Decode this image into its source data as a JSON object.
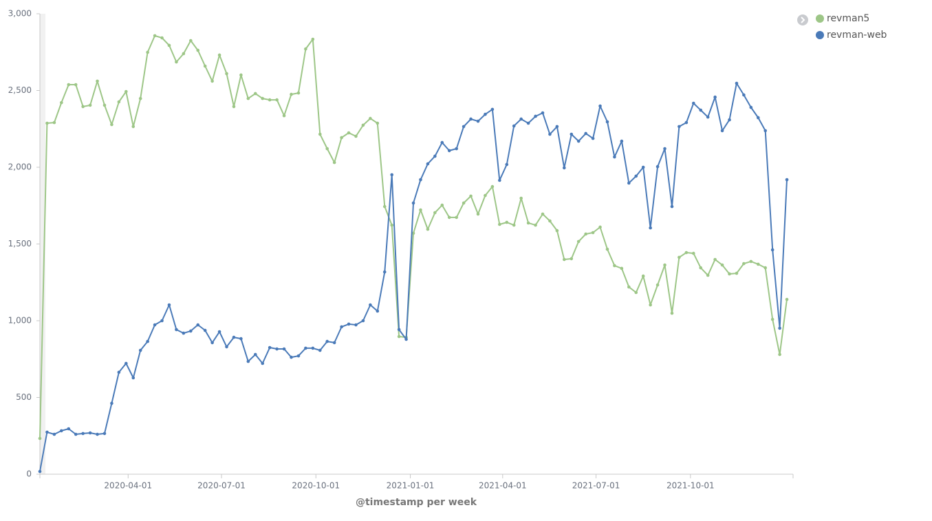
{
  "chart_data": {
    "type": "line",
    "x_label": "@timestamp per week",
    "x": [
      "2020-01-06",
      "2020-01-13",
      "2020-01-20",
      "2020-01-27",
      "2020-02-03",
      "2020-02-10",
      "2020-02-17",
      "2020-02-24",
      "2020-03-02",
      "2020-03-09",
      "2020-03-16",
      "2020-03-23",
      "2020-03-30",
      "2020-04-06",
      "2020-04-13",
      "2020-04-20",
      "2020-04-27",
      "2020-05-04",
      "2020-05-11",
      "2020-05-18",
      "2020-05-25",
      "2020-06-01",
      "2020-06-08",
      "2020-06-15",
      "2020-06-22",
      "2020-06-29",
      "2020-07-06",
      "2020-07-13",
      "2020-07-20",
      "2020-07-27",
      "2020-08-03",
      "2020-08-10",
      "2020-08-17",
      "2020-08-24",
      "2020-08-31",
      "2020-09-07",
      "2020-09-14",
      "2020-09-21",
      "2020-09-28",
      "2020-10-05",
      "2020-10-12",
      "2020-10-19",
      "2020-10-26",
      "2020-11-02",
      "2020-11-09",
      "2020-11-16",
      "2020-11-23",
      "2020-11-30",
      "2020-12-07",
      "2020-12-14",
      "2020-12-21",
      "2020-12-28",
      "2021-01-04",
      "2021-01-11",
      "2021-01-18",
      "2021-01-25",
      "2021-02-01",
      "2021-02-08",
      "2021-02-15",
      "2021-02-22",
      "2021-03-01",
      "2021-03-08",
      "2021-03-15",
      "2021-03-22",
      "2021-03-29",
      "2021-04-05",
      "2021-04-12",
      "2021-04-19",
      "2021-04-26",
      "2021-05-03",
      "2021-05-10",
      "2021-05-17",
      "2021-05-24",
      "2021-05-31",
      "2021-06-07",
      "2021-06-14",
      "2021-06-21",
      "2021-06-28",
      "2021-07-05",
      "2021-07-12",
      "2021-07-19",
      "2021-07-26",
      "2021-08-02",
      "2021-08-09",
      "2021-08-16",
      "2021-08-23",
      "2021-08-30",
      "2021-09-06",
      "2021-09-13",
      "2021-09-20",
      "2021-09-27",
      "2021-10-04",
      "2021-10-11",
      "2021-10-18",
      "2021-10-25",
      "2021-11-01",
      "2021-11-08",
      "2021-11-15",
      "2021-11-22",
      "2021-11-29",
      "2021-12-06",
      "2021-12-13",
      "2021-12-20",
      "2021-12-27",
      "2022-01-03"
    ],
    "series": [
      {
        "name": "revman5",
        "color": "#9dc687",
        "values": [
          233,
          2287,
          2291,
          2421,
          2538,
          2538,
          2395,
          2404,
          2561,
          2404,
          2278,
          2426,
          2493,
          2265,
          2448,
          2749,
          2857,
          2843,
          2794,
          2686,
          2740,
          2825,
          2762,
          2659,
          2561,
          2731,
          2610,
          2395,
          2601,
          2448,
          2480,
          2448,
          2439,
          2439,
          2336,
          2475,
          2484,
          2771,
          2834,
          2215,
          2121,
          2031,
          2193,
          2224,
          2202,
          2274,
          2318,
          2287,
          1744,
          1623,
          897,
          892,
          1570,
          1722,
          1596,
          1704,
          1753,
          1673,
          1673,
          1767,
          1812,
          1695,
          1816,
          1874,
          1628,
          1641,
          1623,
          1798,
          1637,
          1623,
          1695,
          1650,
          1587,
          1399,
          1404,
          1516,
          1565,
          1574,
          1610,
          1466,
          1359,
          1341,
          1220,
          1184,
          1291,
          1103,
          1233,
          1363,
          1049,
          1413,
          1444,
          1439,
          1345,
          1296,
          1399,
          1363,
          1305,
          1309,
          1372,
          1386,
          1368,
          1345,
          1009,
          780,
          1139
        ]
      },
      {
        "name": "revman-web",
        "color": "#4a7ab8",
        "values": [
          18,
          274,
          260,
          283,
          296,
          260,
          265,
          269,
          260,
          265,
          462,
          664,
          722,
          628,
          807,
          865,
          973,
          1000,
          1103,
          942,
          919,
          933,
          973,
          937,
          857,
          928,
          830,
          892,
          883,
          735,
          780,
          722,
          825,
          816,
          816,
          762,
          771,
          821,
          821,
          807,
          865,
          857,
          960,
          978,
          973,
          1000,
          1103,
          1063,
          1318,
          1951,
          942,
          879,
          1767,
          1919,
          2022,
          2072,
          2161,
          2108,
          2121,
          2265,
          2314,
          2300,
          2345,
          2377,
          1915,
          2018,
          2269,
          2314,
          2287,
          2332,
          2354,
          2215,
          2265,
          1996,
          2215,
          2170,
          2220,
          2188,
          2399,
          2296,
          2067,
          2170,
          1897,
          1942,
          2000,
          1605,
          2004,
          2121,
          1744,
          2265,
          2291,
          2417,
          2372,
          2327,
          2457,
          2238,
          2309,
          2547,
          2471,
          2390,
          2323,
          2238,
          1462,
          951,
          1919
        ]
      }
    ],
    "xlim": [
      "2020-01-06",
      "2022-01-09"
    ],
    "xticks": [
      "2020-04-01",
      "2020-07-01",
      "2020-10-01",
      "2021-01-01",
      "2021-04-01",
      "2021-07-01",
      "2021-10-01"
    ],
    "ylim": [
      0,
      3000
    ],
    "yticks": [
      0,
      500,
      {
        "value": 1000,
        "label": "1,000"
      },
      {
        "value": 1500,
        "label": "1,500"
      },
      {
        "value": 2000,
        "label": "2,000"
      },
      {
        "value": 2500,
        "label": "2,500"
      },
      {
        "value": 3000,
        "label": "3,000"
      }
    ],
    "grid": false,
    "legend": "top-right"
  }
}
